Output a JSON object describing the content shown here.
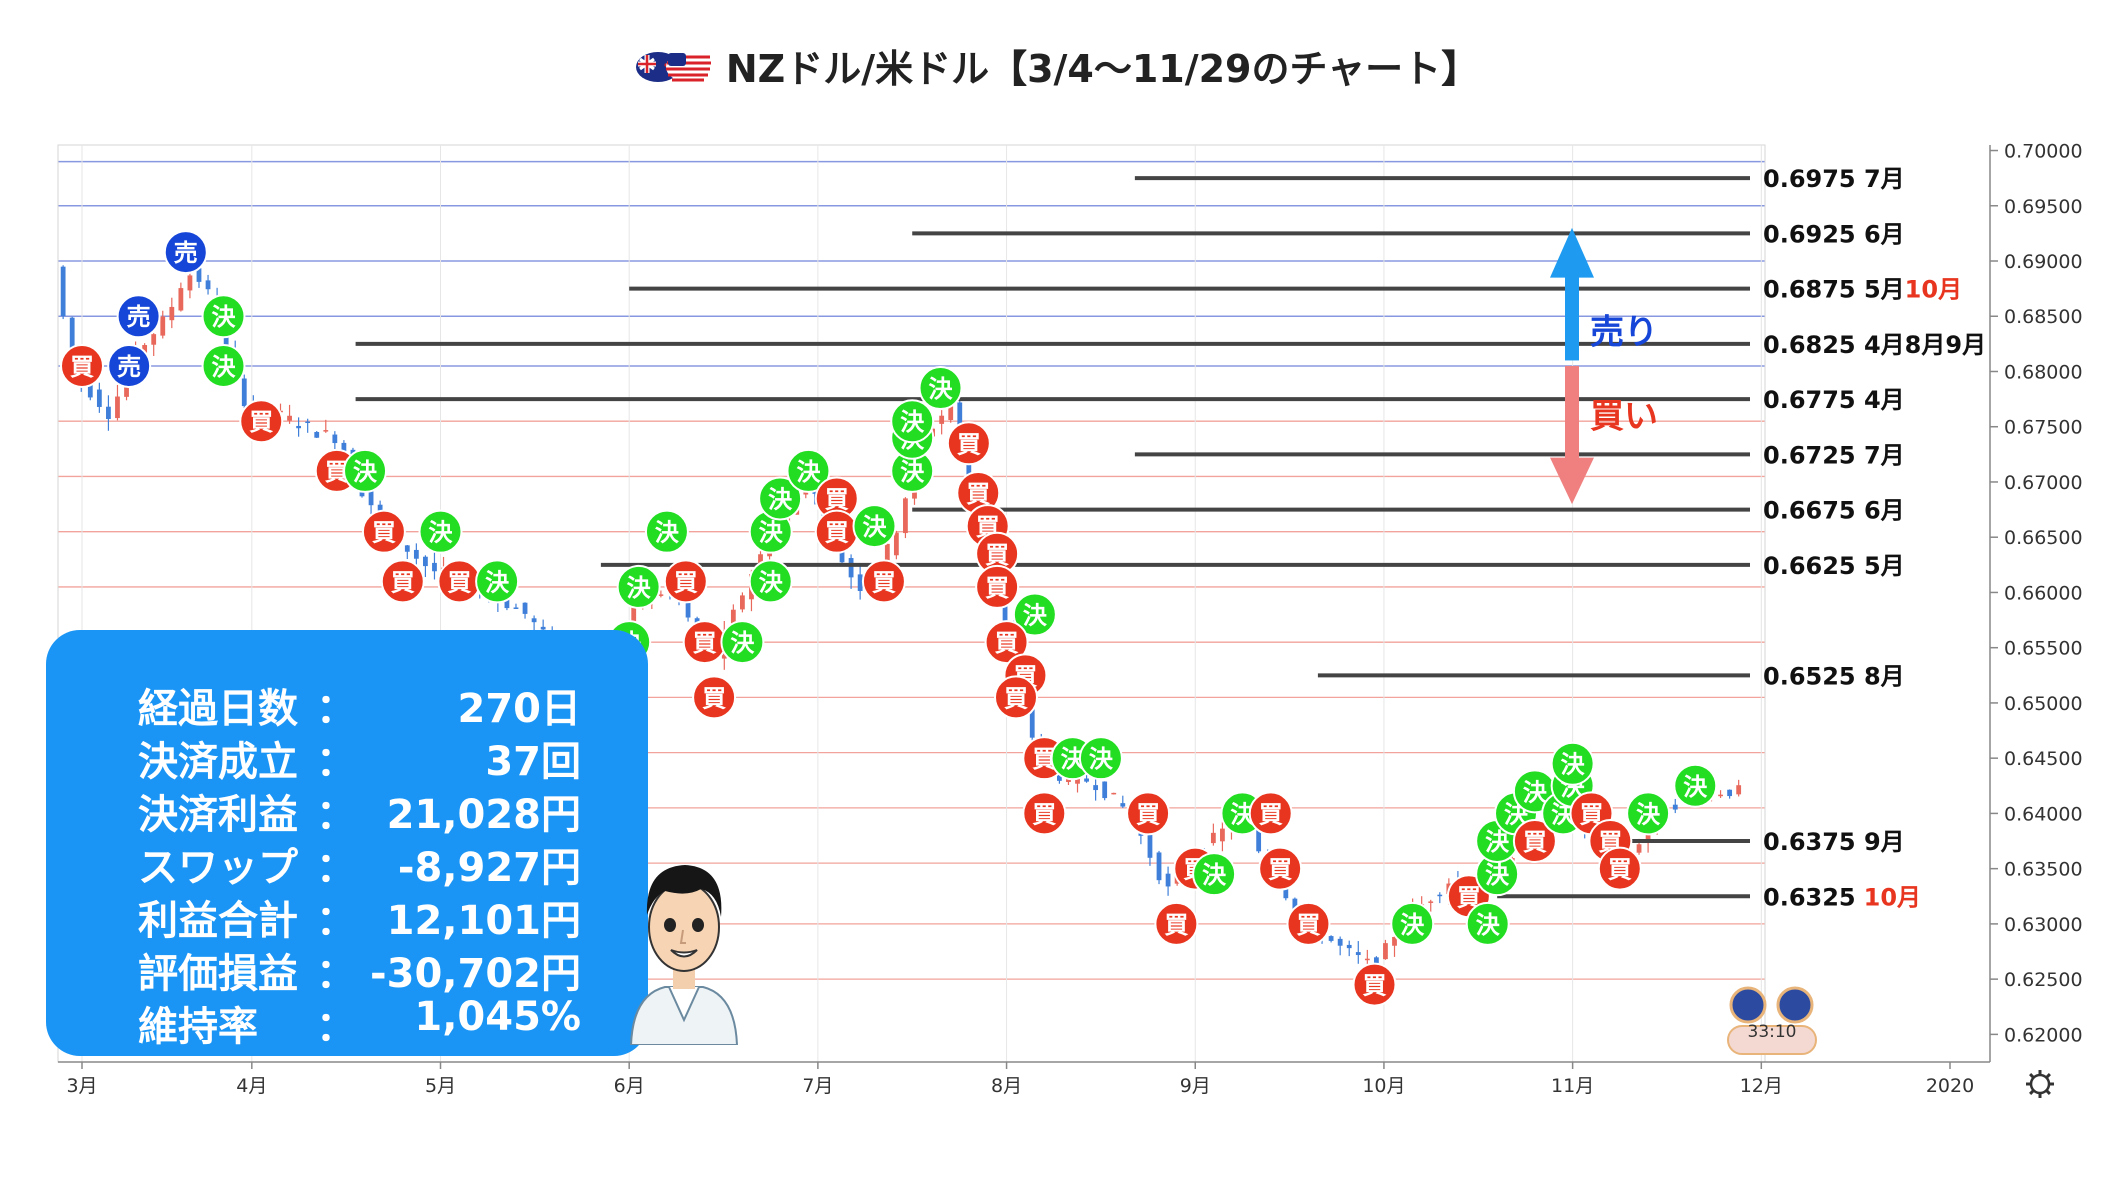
{
  "title": "NZドル/米ドル【3/4〜11/29のチャート】",
  "flags_icon": "nz-us-flags-icon",
  "colors": {
    "buy": "#e8351f",
    "settle": "#22dd22",
    "sell": "#1646d8",
    "level_line": "#444444",
    "arrow_sell": "#1e9bf0",
    "arrow_buy": "#f08080",
    "stats_bg": "#1a95f5",
    "label_red": "#e8351f"
  },
  "stats": [
    {
      "label": "経過日数",
      "sep": "：",
      "value": "270日"
    },
    {
      "label": "決済成立",
      "sep": "：",
      "value": "37回"
    },
    {
      "label": "決済利益",
      "sep": "：",
      "value": "21,028円"
    },
    {
      "label": "スワップ",
      "sep": "：",
      "value": "-8,927円"
    },
    {
      "label": "利益合計",
      "sep": "：",
      "value": "12,101円"
    },
    {
      "label": "評価損益",
      "sep": "：",
      "value": "-30,702円"
    },
    {
      "label": "維持率",
      "sep": "：",
      "value": "1,045%"
    }
  ],
  "chart_data": {
    "type": "candlestick",
    "title": "NZドル/米ドル【3/4〜11/29のチャート】",
    "pair": "NZD/USD",
    "ylim": [
      0.6175,
      0.7005
    ],
    "y_ticks": [
      "0.70000",
      "0.69500",
      "0.69000",
      "0.68500",
      "0.68000",
      "0.67500",
      "0.67000",
      "0.66500",
      "0.66000",
      "0.65500",
      "0.65000",
      "0.64500",
      "0.64000",
      "0.63500",
      "0.63000",
      "0.62500",
      "0.62000"
    ],
    "x_ticks": [
      {
        "label": "3月",
        "month": 3.1
      },
      {
        "label": "4月",
        "month": 4.0
      },
      {
        "label": "5月",
        "month": 5.0
      },
      {
        "label": "6月",
        "month": 6.0
      },
      {
        "label": "7月",
        "month": 7.0
      },
      {
        "label": "8月",
        "month": 8.0
      },
      {
        "label": "9月",
        "month": 9.0
      },
      {
        "label": "10月",
        "month": 10.0
      },
      {
        "label": "11月",
        "month": 11.0
      },
      {
        "label": "12月",
        "month": 12.0
      },
      {
        "label": "2020",
        "month": 13.0
      }
    ],
    "price_path": [
      [
        3.0,
        0.6895
      ],
      [
        3.1,
        0.68
      ],
      [
        3.2,
        0.678
      ],
      [
        3.3,
        0.676
      ],
      [
        3.4,
        0.681
      ],
      [
        3.5,
        0.683
      ],
      [
        3.6,
        0.685
      ],
      [
        3.7,
        0.689
      ],
      [
        3.8,
        0.688
      ],
      [
        3.9,
        0.682
      ],
      [
        4.0,
        0.6775
      ],
      [
        4.2,
        0.676
      ],
      [
        4.4,
        0.6745
      ],
      [
        4.5,
        0.674
      ],
      [
        4.6,
        0.67
      ],
      [
        4.8,
        0.665
      ],
      [
        5.0,
        0.662
      ],
      [
        5.2,
        0.661
      ],
      [
        5.5,
        0.658
      ],
      [
        5.8,
        0.652
      ],
      [
        6.0,
        0.654
      ],
      [
        6.1,
        0.66
      ],
      [
        6.3,
        0.66
      ],
      [
        6.4,
        0.656
      ],
      [
        6.5,
        0.654
      ],
      [
        6.7,
        0.662
      ],
      [
        6.9,
        0.668
      ],
      [
        7.0,
        0.67
      ],
      [
        7.1,
        0.666
      ],
      [
        7.2,
        0.662
      ],
      [
        7.3,
        0.66
      ],
      [
        7.45,
        0.665
      ],
      [
        7.6,
        0.674
      ],
      [
        7.75,
        0.677
      ],
      [
        7.85,
        0.67
      ],
      [
        7.95,
        0.664
      ],
      [
        8.0,
        0.66
      ],
      [
        8.1,
        0.652
      ],
      [
        8.2,
        0.646
      ],
      [
        8.35,
        0.643
      ],
      [
        8.5,
        0.643
      ],
      [
        8.7,
        0.64
      ],
      [
        8.9,
        0.633
      ],
      [
        9.1,
        0.637
      ],
      [
        9.3,
        0.64
      ],
      [
        9.4,
        0.636
      ],
      [
        9.6,
        0.631
      ],
      [
        9.8,
        0.628
      ],
      [
        10.0,
        0.626
      ],
      [
        10.1,
        0.629
      ],
      [
        10.2,
        0.631
      ],
      [
        10.4,
        0.634
      ],
      [
        10.55,
        0.632
      ],
      [
        10.7,
        0.636
      ],
      [
        10.9,
        0.639
      ],
      [
        11.0,
        0.641
      ],
      [
        11.15,
        0.638
      ],
      [
        11.3,
        0.635
      ],
      [
        11.5,
        0.64
      ],
      [
        11.7,
        0.642
      ],
      [
        11.9,
        0.642
      ]
    ],
    "levels": [
      {
        "price": 0.6975,
        "label": "0.6975 7月",
        "extra": "",
        "start": 8.68
      },
      {
        "price": 0.6925,
        "label": "0.6925 6月",
        "extra": "",
        "start": 7.5
      },
      {
        "price": 0.6875,
        "label": "0.6875 5月",
        "extra": "10月",
        "start": 6.0
      },
      {
        "price": 0.6825,
        "label": "0.6825 4月8月9月",
        "extra": "",
        "start": 4.55
      },
      {
        "price": 0.6775,
        "label": "0.6775 4月",
        "extra": "",
        "start": 4.55
      },
      {
        "price": 0.6725,
        "label": "0.6725 7月",
        "extra": "",
        "start": 8.68
      },
      {
        "price": 0.6675,
        "label": "0.6675 6月",
        "extra": "",
        "start": 7.5
      },
      {
        "price": 0.6625,
        "label": "0.6625 5月",
        "extra": "",
        "start": 5.85
      },
      {
        "price": 0.6525,
        "label": "0.6525 8月",
        "extra": "",
        "start": 9.65
      },
      {
        "price": 0.6375,
        "label": "0.6375 9月",
        "extra": "",
        "start": 11.1
      },
      {
        "price": 0.6325,
        "label": "0.6325",
        "extra": "10月",
        "start": 10.6
      }
    ],
    "zone_labels": {
      "sell": "売り",
      "buy": "買い"
    },
    "markers": [
      {
        "t": "sell",
        "m": 3.65,
        "p": 0.6908
      },
      {
        "t": "sell",
        "m": 3.4,
        "p": 0.685
      },
      {
        "t": "sell",
        "m": 3.35,
        "p": 0.6805
      },
      {
        "t": "buy",
        "m": 3.1,
        "p": 0.6805
      },
      {
        "t": "settle",
        "m": 3.85,
        "p": 0.685
      },
      {
        "t": "settle",
        "m": 3.85,
        "p": 0.6805
      },
      {
        "t": "buy",
        "m": 4.05,
        "p": 0.6755
      },
      {
        "t": "buy",
        "m": 4.45,
        "p": 0.671
      },
      {
        "t": "settle",
        "m": 4.6,
        "p": 0.671
      },
      {
        "t": "buy",
        "m": 4.7,
        "p": 0.6655
      },
      {
        "t": "settle",
        "m": 5.0,
        "p": 0.6655
      },
      {
        "t": "buy",
        "m": 4.8,
        "p": 0.661
      },
      {
        "t": "buy",
        "m": 5.1,
        "p": 0.661
      },
      {
        "t": "settle",
        "m": 5.3,
        "p": 0.661
      },
      {
        "t": "settle",
        "m": 6.2,
        "p": 0.6655
      },
      {
        "t": "settle",
        "m": 6.05,
        "p": 0.6605
      },
      {
        "t": "buy",
        "m": 6.3,
        "p": 0.661
      },
      {
        "t": "settle",
        "m": 6.0,
        "p": 0.6555
      },
      {
        "t": "buy",
        "m": 6.4,
        "p": 0.6555
      },
      {
        "t": "settle",
        "m": 6.6,
        "p": 0.6555
      },
      {
        "t": "buy",
        "m": 6.45,
        "p": 0.6505
      },
      {
        "t": "settle",
        "m": 6.75,
        "p": 0.661
      },
      {
        "t": "settle",
        "m": 6.75,
        "p": 0.6655
      },
      {
        "t": "settle",
        "m": 6.8,
        "p": 0.6685
      },
      {
        "t": "settle",
        "m": 6.95,
        "p": 0.671
      },
      {
        "t": "buy",
        "m": 7.1,
        "p": 0.6685
      },
      {
        "t": "buy",
        "m": 7.1,
        "p": 0.6655
      },
      {
        "t": "settle",
        "m": 7.3,
        "p": 0.666
      },
      {
        "t": "buy",
        "m": 7.35,
        "p": 0.661
      },
      {
        "t": "settle",
        "m": 7.5,
        "p": 0.671
      },
      {
        "t": "settle",
        "m": 7.5,
        "p": 0.674
      },
      {
        "t": "settle",
        "m": 7.5,
        "p": 0.6755
      },
      {
        "t": "settle",
        "m": 7.65,
        "p": 0.6785
      },
      {
        "t": "buy",
        "m": 7.8,
        "p": 0.6735
      },
      {
        "t": "buy",
        "m": 7.85,
        "p": 0.669
      },
      {
        "t": "buy",
        "m": 7.9,
        "p": 0.666
      },
      {
        "t": "buy",
        "m": 7.95,
        "p": 0.6635
      },
      {
        "t": "buy",
        "m": 7.95,
        "p": 0.6605
      },
      {
        "t": "settle",
        "m": 8.15,
        "p": 0.658
      },
      {
        "t": "buy",
        "m": 8.0,
        "p": 0.6555
      },
      {
        "t": "buy",
        "m": 8.1,
        "p": 0.6525
      },
      {
        "t": "buy",
        "m": 8.05,
        "p": 0.6505
      },
      {
        "t": "buy",
        "m": 8.2,
        "p": 0.645
      },
      {
        "t": "settle",
        "m": 8.35,
        "p": 0.645
      },
      {
        "t": "settle",
        "m": 8.5,
        "p": 0.645
      },
      {
        "t": "buy",
        "m": 8.2,
        "p": 0.64
      },
      {
        "t": "buy",
        "m": 8.75,
        "p": 0.64
      },
      {
        "t": "buy",
        "m": 9.0,
        "p": 0.635
      },
      {
        "t": "settle",
        "m": 9.1,
        "p": 0.6345
      },
      {
        "t": "buy",
        "m": 8.9,
        "p": 0.63
      },
      {
        "t": "settle",
        "m": 9.25,
        "p": 0.64
      },
      {
        "t": "buy",
        "m": 9.4,
        "p": 0.64
      },
      {
        "t": "buy",
        "m": 9.45,
        "p": 0.635
      },
      {
        "t": "buy",
        "m": 9.6,
        "p": 0.63
      },
      {
        "t": "buy",
        "m": 9.95,
        "p": 0.6245
      },
      {
        "t": "settle",
        "m": 10.15,
        "p": 0.63
      },
      {
        "t": "buy",
        "m": 10.45,
        "p": 0.6325
      },
      {
        "t": "settle",
        "m": 10.55,
        "p": 0.63
      },
      {
        "t": "settle",
        "m": 10.6,
        "p": 0.6345
      },
      {
        "t": "settle",
        "m": 10.6,
        "p": 0.6375
      },
      {
        "t": "settle",
        "m": 10.7,
        "p": 0.64
      },
      {
        "t": "settle",
        "m": 10.8,
        "p": 0.642
      },
      {
        "t": "buy",
        "m": 10.8,
        "p": 0.6375
      },
      {
        "t": "settle",
        "m": 10.95,
        "p": 0.64
      },
      {
        "t": "settle",
        "m": 11.0,
        "p": 0.6425
      },
      {
        "t": "settle",
        "m": 11.0,
        "p": 0.6445
      },
      {
        "t": "buy",
        "m": 11.1,
        "p": 0.64
      },
      {
        "t": "buy",
        "m": 11.2,
        "p": 0.6375
      },
      {
        "t": "buy",
        "m": 11.25,
        "p": 0.635
      },
      {
        "t": "settle",
        "m": 11.4,
        "p": 0.64
      },
      {
        "t": "settle",
        "m": 11.65,
        "p": 0.6425
      }
    ],
    "marker_labels": {
      "buy": "買",
      "settle": "決",
      "sell": "売"
    },
    "watermark_text": "33:10"
  }
}
